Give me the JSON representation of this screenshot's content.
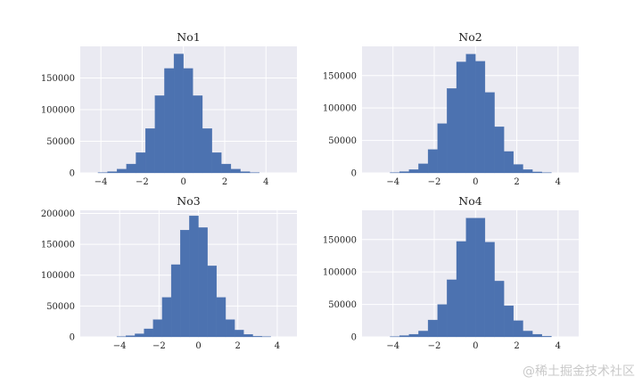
{
  "watermark": "@稀土掘金技术社区",
  "chart_data": [
    {
      "type": "bar",
      "title": "No1",
      "bin_width": 0.46,
      "bins": [
        {
          "x": -3.91,
          "y": 500
        },
        {
          "x": -3.45,
          "y": 2000
        },
        {
          "x": -2.99,
          "y": 6000
        },
        {
          "x": -2.53,
          "y": 14000
        },
        {
          "x": -2.07,
          "y": 32000
        },
        {
          "x": -1.61,
          "y": 70000
        },
        {
          "x": -1.15,
          "y": 122000
        },
        {
          "x": -0.69,
          "y": 165000
        },
        {
          "x": -0.23,
          "y": 188000
        },
        {
          "x": 0.23,
          "y": 165000
        },
        {
          "x": 0.69,
          "y": 122000
        },
        {
          "x": 1.15,
          "y": 70000
        },
        {
          "x": 1.61,
          "y": 32000
        },
        {
          "x": 2.07,
          "y": 14000
        },
        {
          "x": 2.53,
          "y": 6000
        },
        {
          "x": 2.99,
          "y": 2000
        },
        {
          "x": 3.45,
          "y": 500
        }
      ],
      "xlim": [
        -5,
        5.5
      ],
      "ylim": [
        0,
        200000
      ],
      "xticks": [
        -4,
        -2,
        0,
        2,
        4
      ],
      "yticks": [
        0,
        50000,
        100000,
        150000
      ]
    },
    {
      "type": "bar",
      "title": "No2",
      "bin_width": 0.46,
      "bins": [
        {
          "x": -3.91,
          "y": 500
        },
        {
          "x": -3.45,
          "y": 2000
        },
        {
          "x": -2.99,
          "y": 5000
        },
        {
          "x": -2.53,
          "y": 14000
        },
        {
          "x": -2.07,
          "y": 36000
        },
        {
          "x": -1.61,
          "y": 76000
        },
        {
          "x": -1.15,
          "y": 130000
        },
        {
          "x": -0.69,
          "y": 171000
        },
        {
          "x": -0.23,
          "y": 183000
        },
        {
          "x": 0.23,
          "y": 172000
        },
        {
          "x": 0.69,
          "y": 124000
        },
        {
          "x": 1.15,
          "y": 71000
        },
        {
          "x": 1.61,
          "y": 33000
        },
        {
          "x": 2.07,
          "y": 13000
        },
        {
          "x": 2.53,
          "y": 5000
        },
        {
          "x": 2.99,
          "y": 1500
        },
        {
          "x": 3.45,
          "y": 300
        }
      ],
      "xlim": [
        -5.5,
        5
      ],
      "ylim": [
        0,
        195000
      ],
      "xticks": [
        -4,
        -2,
        0,
        2,
        4
      ],
      "yticks": [
        0,
        50000,
        100000,
        150000
      ]
    },
    {
      "type": "bar",
      "title": "No3",
      "bin_width": 0.46,
      "bins": [
        {
          "x": -3.91,
          "y": 500
        },
        {
          "x": -3.45,
          "y": 2000
        },
        {
          "x": -2.99,
          "y": 5000
        },
        {
          "x": -2.53,
          "y": 13000
        },
        {
          "x": -2.07,
          "y": 28000
        },
        {
          "x": -1.61,
          "y": 64000
        },
        {
          "x": -1.15,
          "y": 117000
        },
        {
          "x": -0.69,
          "y": 173000
        },
        {
          "x": -0.23,
          "y": 196000
        },
        {
          "x": 0.23,
          "y": 177000
        },
        {
          "x": 0.69,
          "y": 115000
        },
        {
          "x": 1.15,
          "y": 64000
        },
        {
          "x": 1.61,
          "y": 28000
        },
        {
          "x": 2.07,
          "y": 11000
        },
        {
          "x": 2.53,
          "y": 4000
        },
        {
          "x": 2.99,
          "y": 1000
        },
        {
          "x": 3.45,
          "y": 300
        }
      ],
      "xlim": [
        -6,
        5
      ],
      "ylim": [
        0,
        205000
      ],
      "xticks": [
        -4,
        -2,
        0,
        2,
        4
      ],
      "yticks": [
        0,
        50000,
        100000,
        150000,
        200000
      ]
    },
    {
      "type": "bar",
      "title": "No4",
      "bin_width": 0.46,
      "bins": [
        {
          "x": -3.91,
          "y": 500
        },
        {
          "x": -3.45,
          "y": 2000
        },
        {
          "x": -2.99,
          "y": 4000
        },
        {
          "x": -2.53,
          "y": 9000
        },
        {
          "x": -2.07,
          "y": 26000
        },
        {
          "x": -1.61,
          "y": 50000
        },
        {
          "x": -1.15,
          "y": 88000
        },
        {
          "x": -0.69,
          "y": 147000
        },
        {
          "x": -0.23,
          "y": 183000
        },
        {
          "x": 0.23,
          "y": 183000
        },
        {
          "x": 0.69,
          "y": 146000
        },
        {
          "x": 1.15,
          "y": 86000
        },
        {
          "x": 1.61,
          "y": 48000
        },
        {
          "x": 2.07,
          "y": 25000
        },
        {
          "x": 2.53,
          "y": 9000
        },
        {
          "x": 2.99,
          "y": 4000
        },
        {
          "x": 3.45,
          "y": 1000
        }
      ],
      "xlim": [
        -5.5,
        5
      ],
      "ylim": [
        0,
        195000
      ],
      "xticks": [
        -4,
        -2,
        0,
        2,
        4
      ],
      "yticks": [
        0,
        50000,
        100000,
        150000
      ]
    }
  ],
  "colors": {
    "bar": "#4c72b0",
    "plot_background": "#eaeaf2",
    "grid": "#ffffff",
    "text": "#222222"
  }
}
